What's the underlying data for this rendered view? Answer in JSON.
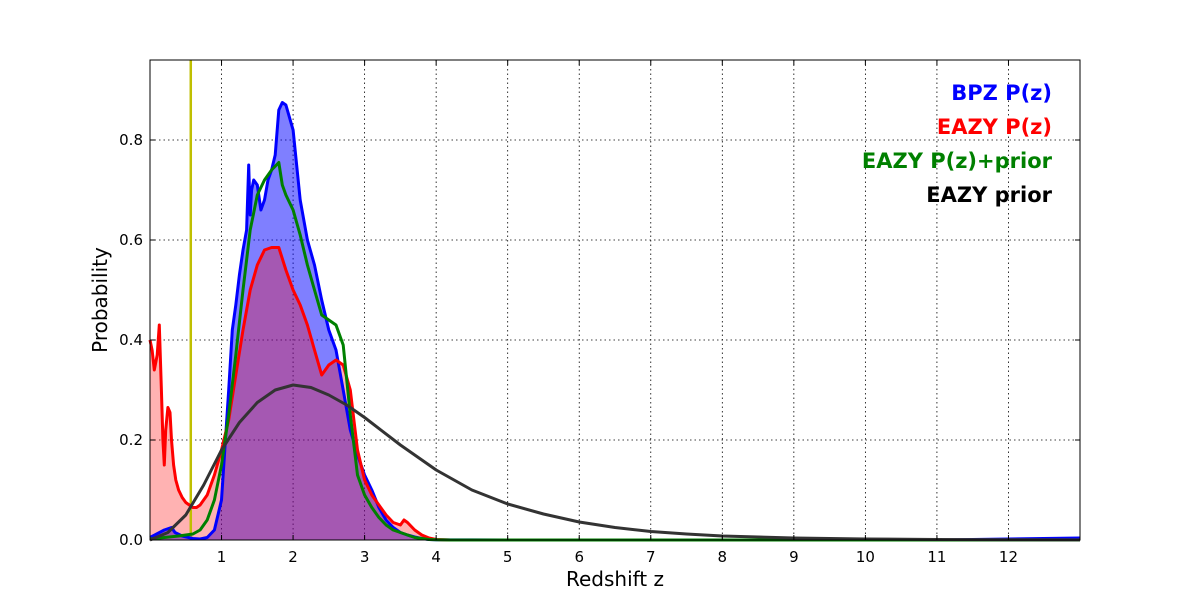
{
  "chart_data": {
    "type": "area",
    "title": "",
    "xlabel": "Redshift z",
    "ylabel": "Probability",
    "xlim": [
      0,
      13
    ],
    "ylim": [
      0,
      0.96
    ],
    "xticks": [
      1,
      2,
      3,
      4,
      5,
      6,
      7,
      8,
      9,
      10,
      11,
      12
    ],
    "xtick_labels": [
      "1",
      "2",
      "3",
      "4",
      "5",
      "6",
      "7",
      "8",
      "9",
      "10",
      "11",
      "12"
    ],
    "yticks": [
      0.0,
      0.2,
      0.4,
      0.6,
      0.8
    ],
    "ytick_labels": [
      "0.0",
      "0.2",
      "0.4",
      "0.6",
      "0.8"
    ],
    "grid": true,
    "legend_position": "top-right",
    "vline": {
      "x": 0.57,
      "color": "#bfbf00"
    },
    "series": [
      {
        "name": "BPZ P(z)",
        "color": "#0000ff",
        "fill": "#0000ff",
        "fill_opacity": 0.5,
        "x": [
          0,
          0.2,
          0.3,
          0.35,
          0.45,
          0.6,
          0.7,
          0.8,
          0.9,
          1.0,
          1.1,
          1.15,
          1.2,
          1.25,
          1.3,
          1.35,
          1.38,
          1.4,
          1.42,
          1.45,
          1.5,
          1.55,
          1.6,
          1.65,
          1.7,
          1.75,
          1.8,
          1.85,
          1.9,
          2.0,
          2.1,
          2.2,
          2.3,
          2.4,
          2.5,
          2.6,
          2.7,
          2.8,
          2.9,
          3.0,
          3.1,
          3.2,
          3.3,
          3.4,
          3.5,
          3.6,
          3.7,
          3.8,
          3.9,
          4.0,
          5,
          6,
          7,
          8,
          9,
          10,
          11,
          12,
          13
        ],
        "values": [
          0.005,
          0.02,
          0.025,
          0.015,
          0.008,
          0.003,
          0.002,
          0.005,
          0.02,
          0.08,
          0.3,
          0.42,
          0.47,
          0.53,
          0.58,
          0.62,
          0.75,
          0.65,
          0.7,
          0.72,
          0.71,
          0.66,
          0.68,
          0.72,
          0.74,
          0.77,
          0.86,
          0.875,
          0.87,
          0.82,
          0.68,
          0.6,
          0.55,
          0.48,
          0.42,
          0.38,
          0.3,
          0.22,
          0.17,
          0.13,
          0.1,
          0.065,
          0.04,
          0.025,
          0.015,
          0.01,
          0.006,
          0.003,
          0.001,
          0.0005,
          0,
          0,
          0,
          0,
          0,
          0,
          0,
          0.002,
          0.004
        ]
      },
      {
        "name": "EAZY P(z)",
        "color": "#ff0000",
        "fill": "#ff0000",
        "fill_opacity": 0.3,
        "x": [
          0,
          0.03,
          0.06,
          0.1,
          0.13,
          0.16,
          0.18,
          0.2,
          0.22,
          0.25,
          0.28,
          0.3,
          0.33,
          0.36,
          0.4,
          0.45,
          0.5,
          0.55,
          0.6,
          0.65,
          0.7,
          0.8,
          0.9,
          1.0,
          1.1,
          1.2,
          1.3,
          1.4,
          1.5,
          1.6,
          1.7,
          1.8,
          1.9,
          2.0,
          2.1,
          2.2,
          2.3,
          2.4,
          2.5,
          2.6,
          2.7,
          2.8,
          2.9,
          3.0,
          3.1,
          3.2,
          3.3,
          3.4,
          3.5,
          3.55,
          3.6,
          3.7,
          3.8,
          3.9,
          4.0,
          4.2,
          13
        ],
        "values": [
          0.4,
          0.38,
          0.34,
          0.37,
          0.43,
          0.3,
          0.2,
          0.15,
          0.22,
          0.265,
          0.255,
          0.2,
          0.15,
          0.12,
          0.1,
          0.085,
          0.075,
          0.07,
          0.065,
          0.065,
          0.07,
          0.09,
          0.13,
          0.18,
          0.24,
          0.33,
          0.42,
          0.5,
          0.55,
          0.58,
          0.585,
          0.585,
          0.54,
          0.5,
          0.47,
          0.43,
          0.38,
          0.33,
          0.35,
          0.36,
          0.35,
          0.3,
          0.18,
          0.12,
          0.09,
          0.07,
          0.05,
          0.035,
          0.03,
          0.04,
          0.035,
          0.02,
          0.01,
          0.004,
          0.001,
          0,
          0
        ]
      },
      {
        "name": "EAZY P(z)+prior",
        "color": "#008000",
        "fill": "none",
        "fill_opacity": 0,
        "x": [
          0,
          0.2,
          0.4,
          0.6,
          0.7,
          0.8,
          0.9,
          1.0,
          1.1,
          1.2,
          1.3,
          1.4,
          1.5,
          1.6,
          1.7,
          1.8,
          1.85,
          1.9,
          2.0,
          2.1,
          2.2,
          2.3,
          2.4,
          2.5,
          2.6,
          2.7,
          2.8,
          2.9,
          3.0,
          3.1,
          3.2,
          3.3,
          3.4,
          3.5,
          3.6,
          3.7,
          3.8,
          3.9,
          4.0,
          4.2,
          13
        ],
        "values": [
          0.002,
          0.005,
          0.008,
          0.012,
          0.02,
          0.04,
          0.08,
          0.15,
          0.25,
          0.37,
          0.5,
          0.62,
          0.69,
          0.72,
          0.74,
          0.755,
          0.71,
          0.69,
          0.66,
          0.61,
          0.55,
          0.5,
          0.45,
          0.44,
          0.43,
          0.39,
          0.25,
          0.13,
          0.09,
          0.065,
          0.045,
          0.03,
          0.02,
          0.015,
          0.01,
          0.005,
          0.003,
          0.001,
          0.0005,
          0,
          0
        ]
      },
      {
        "name": "EAZY prior",
        "color": "#333333",
        "fill": "none",
        "fill_opacity": 0,
        "x": [
          0,
          0.25,
          0.5,
          0.75,
          1.0,
          1.25,
          1.5,
          1.75,
          2.0,
          2.25,
          2.5,
          2.75,
          3.0,
          3.5,
          4.0,
          4.5,
          5.0,
          5.5,
          6.0,
          6.5,
          7.0,
          7.5,
          8.0,
          9.0,
          10.0,
          11.0,
          12.0,
          13.0
        ],
        "values": [
          0.0,
          0.015,
          0.05,
          0.11,
          0.18,
          0.235,
          0.275,
          0.3,
          0.31,
          0.305,
          0.29,
          0.27,
          0.245,
          0.19,
          0.14,
          0.1,
          0.072,
          0.052,
          0.036,
          0.025,
          0.017,
          0.012,
          0.008,
          0.004,
          0.002,
          0.001,
          0.0005,
          0.0002
        ]
      }
    ]
  }
}
